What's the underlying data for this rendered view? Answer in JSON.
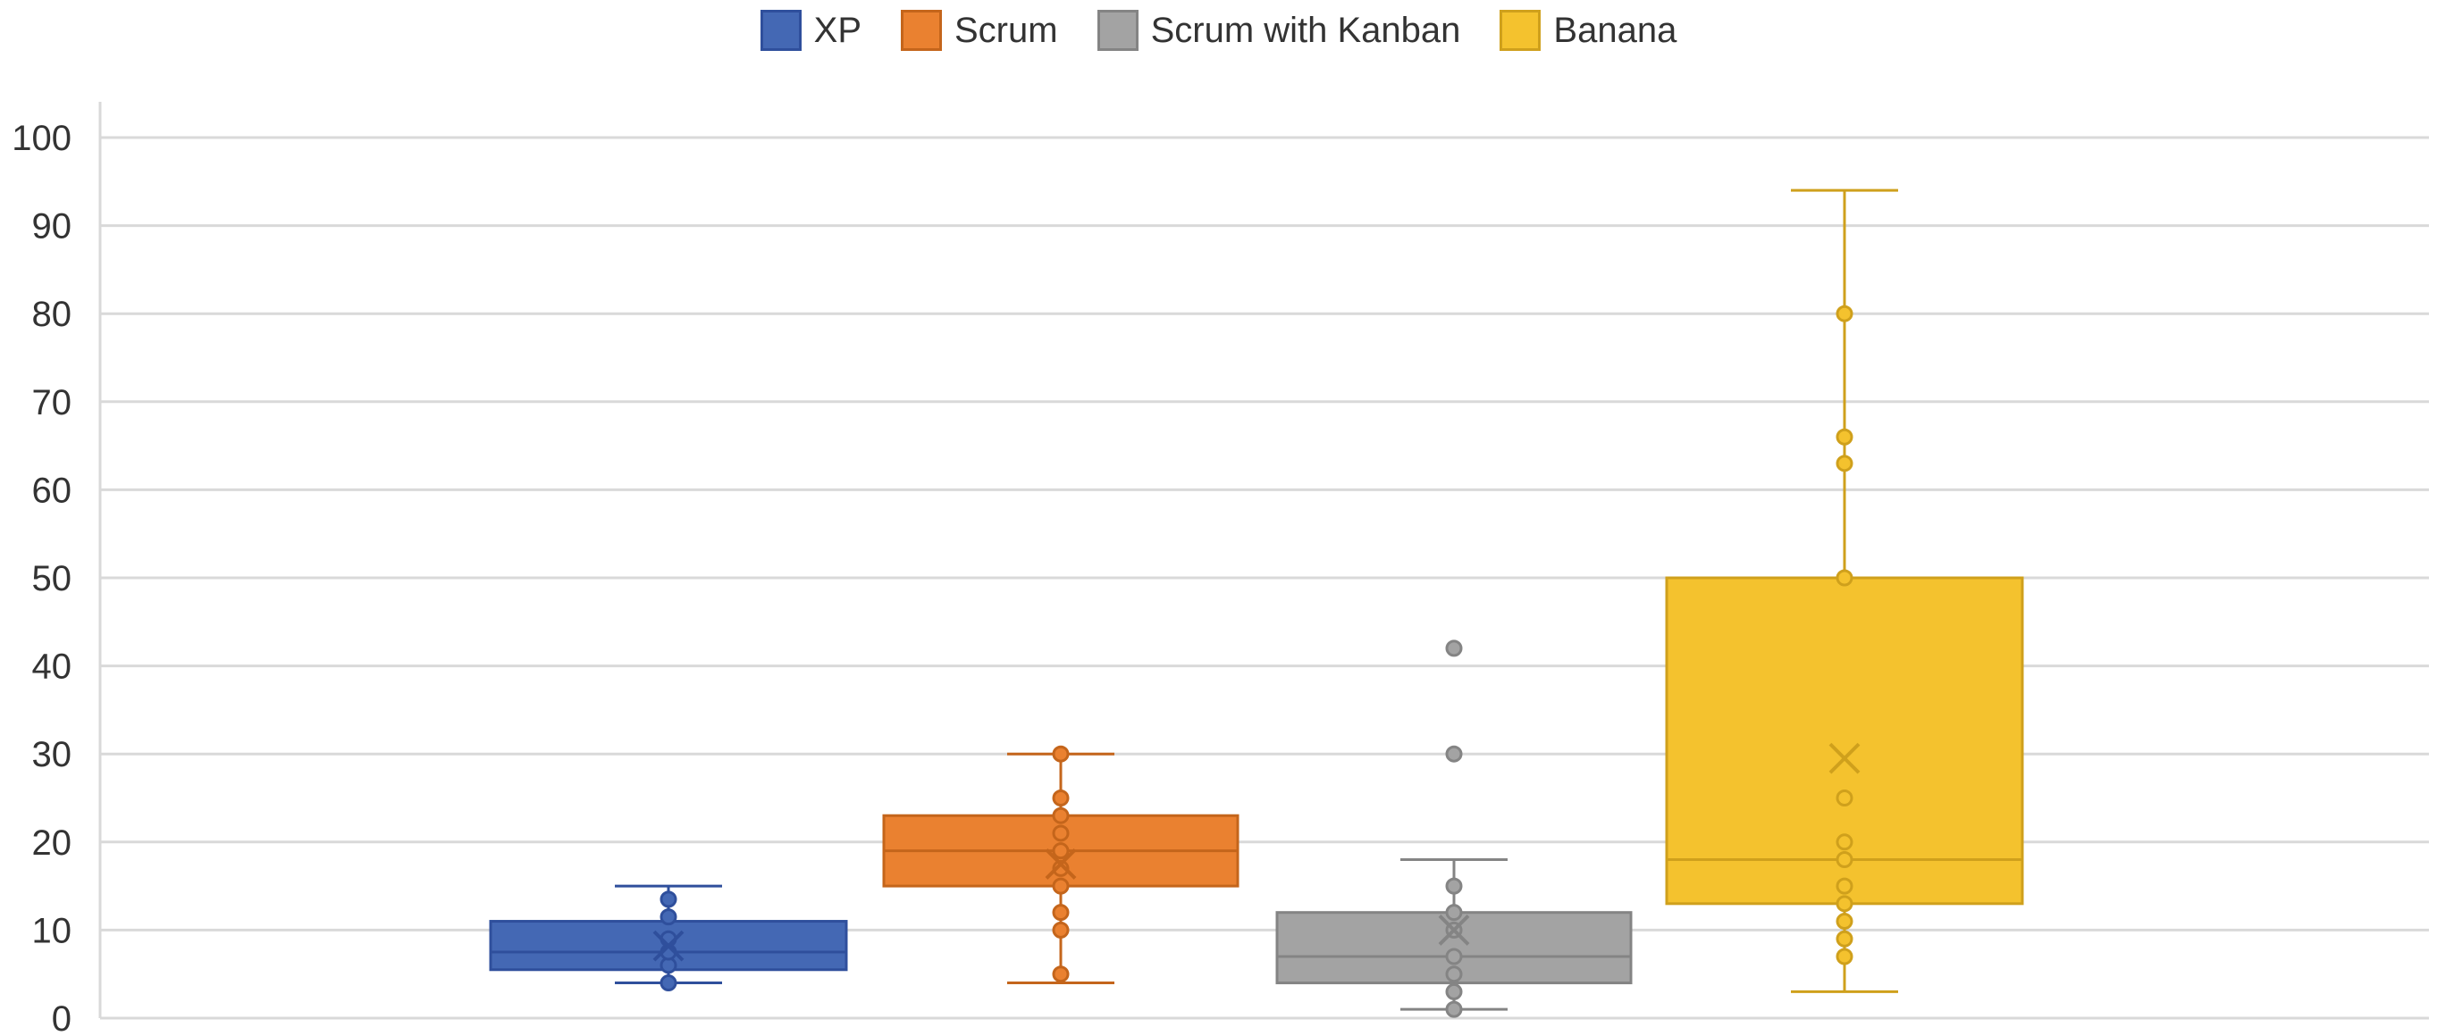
{
  "chart_data": {
    "type": "box",
    "title": "",
    "xlabel": "",
    "ylabel": "",
    "ylim": [
      0,
      100
    ],
    "yticks": [
      "0",
      "10",
      "20",
      "30",
      "40",
      "50",
      "60",
      "70",
      "80",
      "90",
      "100"
    ],
    "grid": true,
    "legend_position": "top-center",
    "series": [
      {
        "name": "XP",
        "color": "#4468B4",
        "edge": "#2F4F9C",
        "min": 4,
        "q1": 5.5,
        "median": 7.5,
        "q3": 11,
        "max": 15,
        "mean": 8.2,
        "points": [
          4,
          6,
          7.5,
          9,
          11.5,
          13.5
        ]
      },
      {
        "name": "Scrum",
        "color": "#EA8130",
        "edge": "#C4651B",
        "min": 4,
        "q1": 15,
        "median": 19,
        "q3": 23,
        "max": 30,
        "mean": 17.5,
        "points": [
          5,
          10,
          12,
          15,
          17,
          19,
          21,
          23,
          25,
          30
        ]
      },
      {
        "name": "Scrum with Kanban",
        "color": "#A3A3A3",
        "edge": "#848484",
        "min": 1,
        "q1": 4,
        "median": 7,
        "q3": 12,
        "max": 18,
        "mean": 10,
        "points": [
          1,
          3,
          5,
          7,
          10,
          12,
          15,
          30,
          42
        ]
      },
      {
        "name": "Banana",
        "color": "#F4C22E",
        "edge": "#CFA01C",
        "min": 3,
        "q1": 13,
        "median": 18,
        "q3": 50,
        "max": 94,
        "mean": 29.5,
        "points": [
          7,
          9,
          11,
          13,
          15,
          18,
          20,
          25,
          50,
          63,
          66,
          80
        ]
      }
    ]
  }
}
